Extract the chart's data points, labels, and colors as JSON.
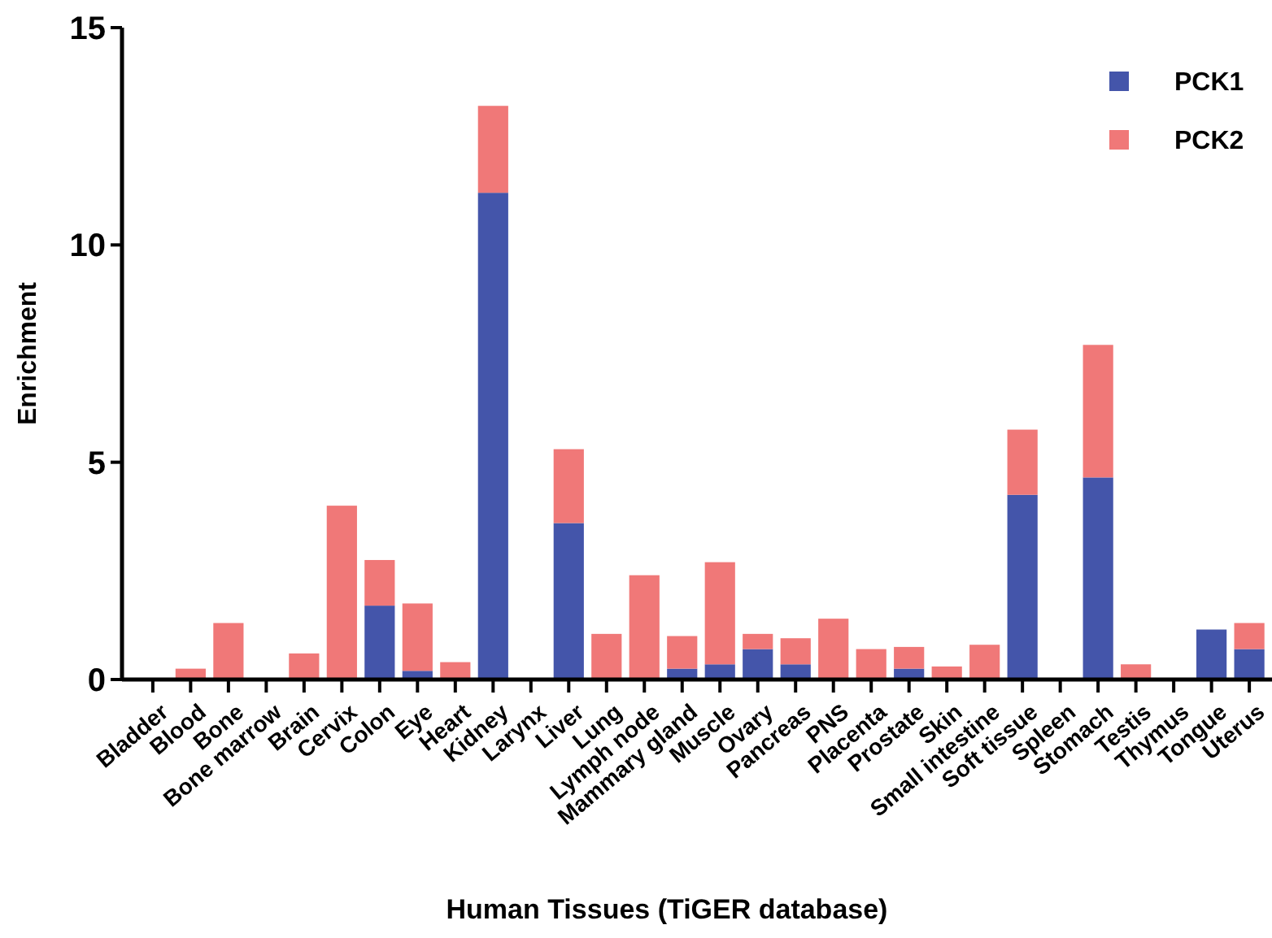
{
  "chart_data": {
    "type": "bar",
    "stacked": true,
    "xlabel": "Human Tissues (TiGER database)",
    "ylabel": "Enrichment",
    "categories": [
      "Bladder",
      "Blood",
      "Bone",
      "Bone marrow",
      "Brain",
      "Cervix",
      "Colon",
      "Eye",
      "Heart",
      "Kidney",
      "Larynx",
      "Liver",
      "Lung",
      "Lymph node",
      "Mammary gland",
      "Muscle",
      "Ovary",
      "Pancreas",
      "PNS",
      "Placenta",
      "Prostate",
      "Skin",
      "Small intestine",
      "Soft tissue",
      "Spleen",
      "Stomach",
      "Testis",
      "Thymus",
      "Tongue",
      "Uterus"
    ],
    "series": [
      {
        "name": "PCK1",
        "color": "#4455aa",
        "values": [
          0,
          0,
          0,
          0,
          0,
          0,
          1.7,
          0.2,
          0,
          11.2,
          0,
          3.6,
          0,
          0,
          0.25,
          0.35,
          0.7,
          0.35,
          0,
          0,
          0.25,
          0,
          0,
          4.25,
          0,
          4.65,
          0,
          0,
          1.15,
          0.7
        ]
      },
      {
        "name": "PCK2",
        "color": "#f07878",
        "values": [
          0,
          0.25,
          1.3,
          0,
          0.6,
          4.0,
          1.05,
          1.55,
          0.4,
          2.0,
          0,
          1.7,
          1.05,
          2.4,
          0.75,
          2.35,
          0.35,
          0.6,
          1.4,
          0.7,
          0.5,
          0.3,
          0.8,
          1.5,
          0,
          3.05,
          0.35,
          0,
          0,
          0.6
        ]
      }
    ],
    "ylim": [
      0,
      15
    ],
    "yticks": [
      0,
      5,
      10,
      15
    ],
    "grid": false,
    "legend": "top right"
  }
}
